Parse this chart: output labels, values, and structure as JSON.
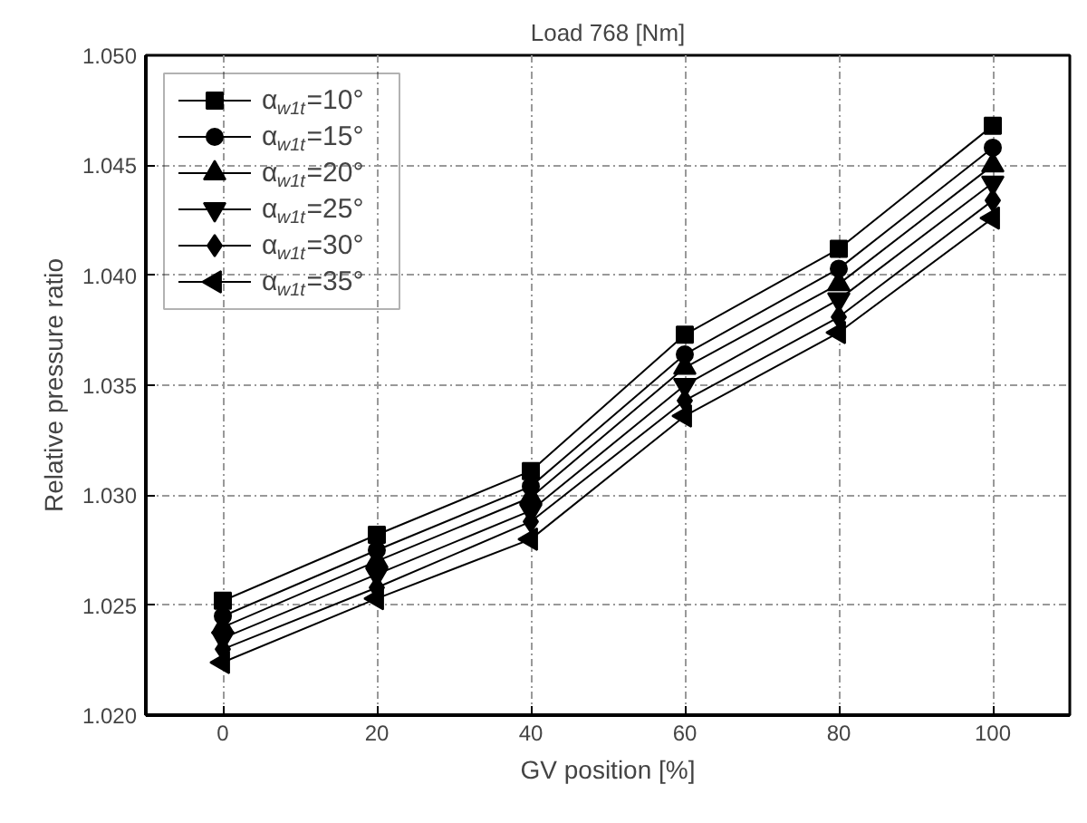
{
  "chart_data": {
    "type": "line",
    "title": "Load 768 [Nm]",
    "xlabel": "GV position [%]",
    "ylabel": "Relative pressure ratio",
    "x": [
      0,
      20,
      40,
      60,
      80,
      100
    ],
    "xlim": [
      -10,
      110
    ],
    "xticks": [
      0,
      20,
      40,
      60,
      80,
      100
    ],
    "ylim": [
      1.02,
      1.05
    ],
    "yticks": [
      {
        "value": 1.02,
        "label": "1.020"
      },
      {
        "value": 1.025,
        "label": "1.025"
      },
      {
        "value": 1.03,
        "label": "1.030"
      },
      {
        "value": 1.035,
        "label": "1.035"
      },
      {
        "value": 1.04,
        "label": "1.040"
      },
      {
        "value": 1.045,
        "label": "1.045"
      },
      {
        "value": 1.05,
        "label": "1.050"
      }
    ],
    "grid": true,
    "legend": "top left",
    "line_style": "solid",
    "series": [
      {
        "name": "α$_{w1t}$=10°",
        "color": "#000000",
        "marker": "square",
        "values": [
          1.0252,
          1.0282,
          1.0311,
          1.0373,
          1.0412,
          1.0468
        ]
      },
      {
        "name": "α$_{w1t}$=15°",
        "color": "#000000",
        "marker": "circle",
        "values": [
          1.0245,
          1.0275,
          1.0304,
          1.0364,
          1.0403,
          1.0458
        ]
      },
      {
        "name": "α$_{w1t}$=20°",
        "color": "#000000",
        "marker": "triangle",
        "values": [
          1.024,
          1.027,
          1.0299,
          1.0358,
          1.0396,
          1.045
        ]
      },
      {
        "name": "α$_{w1t}$=25°",
        "color": "#000000",
        "marker": "triangle-down",
        "values": [
          1.0235,
          1.0264,
          1.0293,
          1.035,
          1.0389,
          1.0442
        ]
      },
      {
        "name": "α$_{w1t}$=30°",
        "color": "#000000",
        "marker": "diamond",
        "values": [
          1.023,
          1.0258,
          1.0288,
          1.0343,
          1.0381,
          1.0434
        ]
      },
      {
        "name": "α$_{w1t}$=35°",
        "color": "#000000",
        "marker": "triangle-left",
        "values": [
          1.0224,
          1.0253,
          1.028,
          1.0336,
          1.0374,
          1.0426
        ]
      }
    ]
  }
}
